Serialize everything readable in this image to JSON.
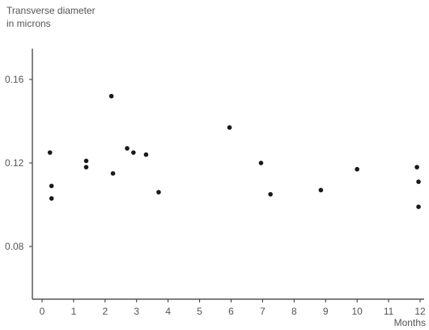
{
  "chart_data": {
    "type": "scatter",
    "ylabel_line1": "Transverse diameter",
    "ylabel_line2": "in microns",
    "xlabel": "Months",
    "xlim": [
      0,
      12
    ],
    "ylim": [
      0.05,
      0.18
    ],
    "xticks": [
      0,
      1,
      2,
      3,
      4,
      5,
      6,
      7,
      8,
      9,
      10,
      11,
      12
    ],
    "yticks": [
      0.08,
      0.12,
      0.16
    ],
    "ytick_labels": [
      "0.08",
      "0.12",
      "0.16"
    ],
    "grid": false,
    "points": [
      {
        "x": 0.25,
        "y": 0.125
      },
      {
        "x": 0.3,
        "y": 0.109
      },
      {
        "x": 0.3,
        "y": 0.103
      },
      {
        "x": 1.4,
        "y": 0.121
      },
      {
        "x": 1.4,
        "y": 0.118
      },
      {
        "x": 2.2,
        "y": 0.152
      },
      {
        "x": 2.25,
        "y": 0.115
      },
      {
        "x": 2.7,
        "y": 0.127
      },
      {
        "x": 2.9,
        "y": 0.125
      },
      {
        "x": 3.3,
        "y": 0.124
      },
      {
        "x": 3.7,
        "y": 0.106
      },
      {
        "x": 5.95,
        "y": 0.137
      },
      {
        "x": 6.95,
        "y": 0.12
      },
      {
        "x": 7.25,
        "y": 0.105
      },
      {
        "x": 8.85,
        "y": 0.107
      },
      {
        "x": 10.0,
        "y": 0.117
      },
      {
        "x": 11.9,
        "y": 0.118
      },
      {
        "x": 11.95,
        "y": 0.111
      },
      {
        "x": 11.95,
        "y": 0.099
      }
    ]
  }
}
